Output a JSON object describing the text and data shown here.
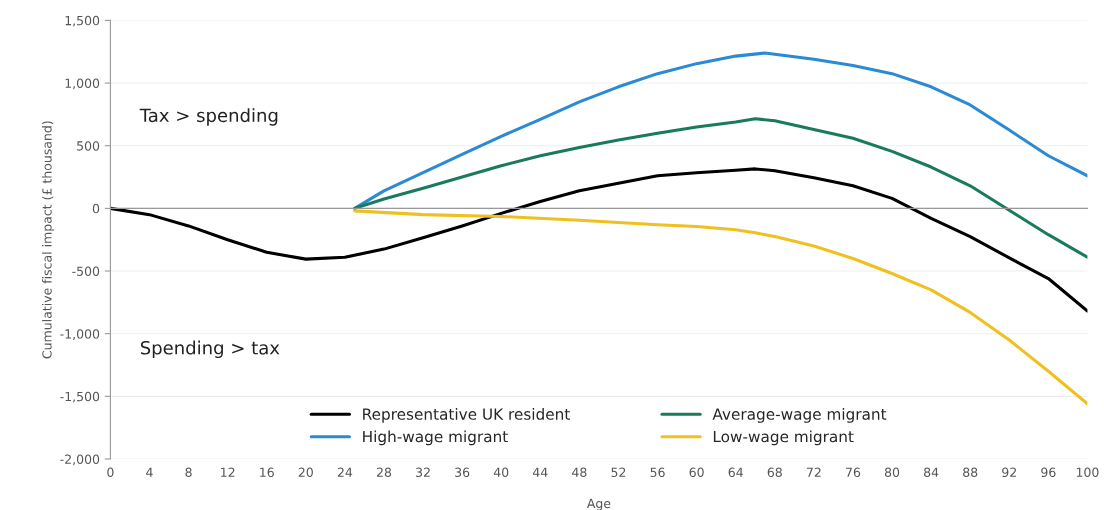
{
  "chart_data": {
    "type": "line",
    "xlabel": "Age",
    "ylabel": "Cumulative fiscal impact (£ thousand)",
    "xlim": [
      0,
      100
    ],
    "xticks": [
      0,
      4,
      8,
      12,
      16,
      20,
      24,
      28,
      32,
      36,
      40,
      44,
      48,
      52,
      56,
      60,
      64,
      68,
      72,
      76,
      80,
      84,
      88,
      92,
      96,
      100
    ],
    "ylim": [
      -2000,
      1500
    ],
    "yticks": [
      {
        "value": -2000,
        "label": "-2,000"
      },
      {
        "value": -1500,
        "label": "-1,500"
      },
      {
        "value": -1000,
        "label": "-1,000"
      },
      {
        "value": -500,
        "label": "-500"
      },
      0,
      {
        "value": 500,
        "label": "500"
      },
      {
        "value": 1000,
        "label": "1,000"
      },
      {
        "value": 1500,
        "label": "1,500"
      }
    ],
    "grid": "y",
    "legend": "bottom",
    "line_style": "solid",
    "marker": "none",
    "annotations": [
      "Tax > spending",
      "Spending > tax"
    ],
    "series": [
      {
        "name": "Representative UK resident",
        "color": "#000000",
        "x": [
          0,
          4,
          8,
          12,
          16,
          20,
          24,
          28,
          32,
          36,
          40,
          44,
          48,
          52,
          56,
          60,
          64,
          66,
          68,
          72,
          76,
          80,
          82,
          84,
          88,
          92,
          96,
          100
        ],
        "values": [
          0,
          -50,
          -140,
          -250,
          -350,
          -405,
          -390,
          -325,
          -235,
          -140,
          -40,
          55,
          140,
          200,
          260,
          285,
          305,
          315,
          300,
          245,
          180,
          80,
          0,
          -80,
          -225,
          -395,
          -560,
          -820
        ]
      },
      {
        "name": "High-wage migrant",
        "color": "#2a8ad4",
        "x": [
          25,
          28,
          32,
          36,
          40,
          44,
          48,
          52,
          56,
          60,
          64,
          67,
          72,
          76,
          80,
          84,
          88,
          92,
          96,
          100
        ],
        "values": [
          0,
          140,
          285,
          430,
          575,
          710,
          850,
          970,
          1075,
          1155,
          1215,
          1240,
          1190,
          1140,
          1075,
          970,
          825,
          625,
          420,
          260
        ]
      },
      {
        "name": "Average-wage migrant",
        "color": "#1a7a5e",
        "x": [
          25,
          28,
          32,
          36,
          40,
          44,
          48,
          52,
          56,
          60,
          64,
          66,
          68,
          72,
          76,
          80,
          84,
          88,
          92,
          96,
          100
        ],
        "values": [
          0,
          75,
          160,
          250,
          340,
          420,
          485,
          545,
          600,
          650,
          690,
          715,
          700,
          630,
          560,
          455,
          330,
          180,
          -15,
          -210,
          -390
        ]
      },
      {
        "name": "Low-wage migrant",
        "color": "#f0c020",
        "x": [
          25,
          32,
          40,
          48,
          56,
          60,
          64,
          66,
          68,
          72,
          76,
          80,
          84,
          88,
          92,
          96,
          100
        ],
        "values": [
          -20,
          -50,
          -65,
          -95,
          -130,
          -145,
          -170,
          -195,
          -225,
          -300,
          -400,
          -520,
          -650,
          -830,
          -1050,
          -1300,
          -1560
        ]
      }
    ]
  }
}
